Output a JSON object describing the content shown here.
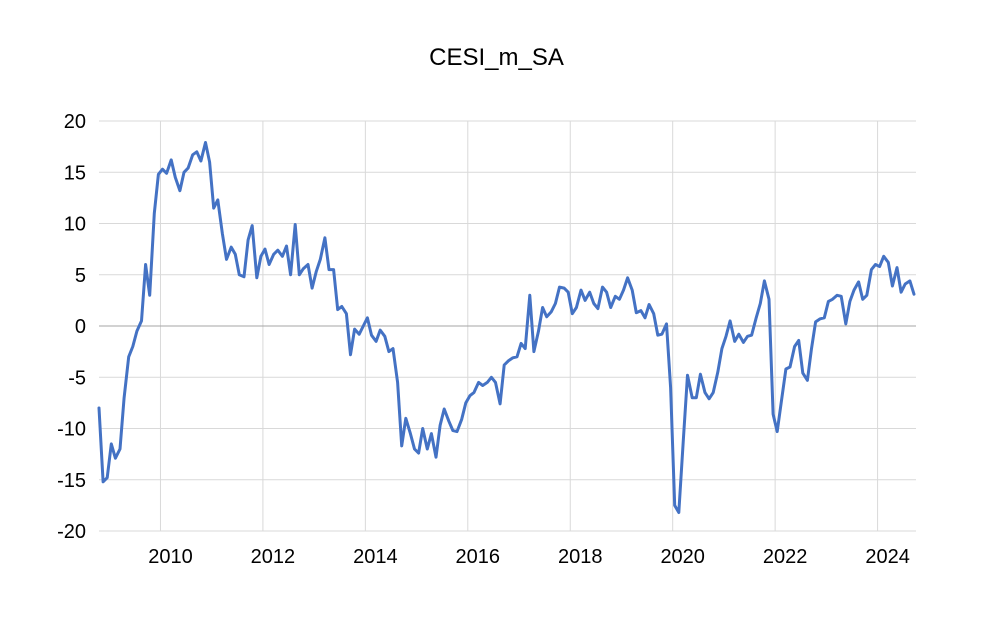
{
  "chart_data": {
    "type": "line",
    "title": "CESI_m_SA",
    "xlabel": "",
    "ylabel": "",
    "ylim": [
      -20,
      20
    ],
    "xlim": [
      2008.8,
      2024.75
    ],
    "yticks": [
      "20",
      "15",
      "10",
      "5",
      "0",
      "-5",
      "-10",
      "-15",
      "-20"
    ],
    "xticks": [
      "2010",
      "2012",
      "2014",
      "2016",
      "2018",
      "2020",
      "2022",
      "2024"
    ],
    "grid": true,
    "legend": "none",
    "colors": {
      "line": "#4472C4",
      "grid": "#D9D9D9",
      "zero_line": "#A6A6A6"
    },
    "series": [
      {
        "x": [
          2008.8,
          2008.88,
          2008.96,
          2009.04,
          2009.12,
          2009.21,
          2009.29,
          2009.38,
          2009.46,
          2009.54,
          2009.63,
          2009.71,
          2009.79,
          2009.88,
          2009.96,
          2010.04,
          2010.12,
          2010.21,
          2010.29,
          2010.38,
          2010.46,
          2010.54,
          2010.63,
          2010.71,
          2010.79,
          2010.88,
          2010.96,
          2011.04,
          2011.12,
          2011.21,
          2011.29,
          2011.38,
          2011.46,
          2011.54,
          2011.63,
          2011.71,
          2011.79,
          2011.88,
          2011.96,
          2012.04,
          2012.12,
          2012.21,
          2012.29,
          2012.38,
          2012.46,
          2012.54,
          2012.63,
          2012.71,
          2012.79,
          2012.88,
          2012.96,
          2013.04,
          2013.12,
          2013.21,
          2013.29,
          2013.38,
          2013.46,
          2013.54,
          2013.63,
          2013.71,
          2013.79,
          2013.88,
          2013.96,
          2014.04,
          2014.12,
          2014.21,
          2014.29,
          2014.38,
          2014.46,
          2014.54,
          2014.63,
          2014.71,
          2014.79,
          2014.88,
          2014.96,
          2015.04,
          2015.12,
          2015.21,
          2015.29,
          2015.38,
          2015.46,
          2015.54,
          2015.63,
          2015.71,
          2015.79,
          2015.88,
          2015.96,
          2016.04,
          2016.12,
          2016.21,
          2016.29,
          2016.38,
          2016.46,
          2016.54,
          2016.63,
          2016.71,
          2016.79,
          2016.88,
          2016.96,
          2017.04,
          2017.12,
          2017.21,
          2017.29,
          2017.38,
          2017.46,
          2017.54,
          2017.63,
          2017.71,
          2017.79,
          2017.88,
          2017.96,
          2018.04,
          2018.12,
          2018.21,
          2018.29,
          2018.38,
          2018.46,
          2018.54,
          2018.63,
          2018.71,
          2018.79,
          2018.88,
          2018.96,
          2019.04,
          2019.12,
          2019.21,
          2019.29,
          2019.38,
          2019.46,
          2019.54,
          2019.63,
          2019.71,
          2019.79,
          2019.88,
          2019.96,
          2020.04,
          2020.12,
          2020.21,
          2020.29,
          2020.38,
          2020.46,
          2020.54,
          2020.63,
          2020.71,
          2020.79,
          2020.88,
          2020.96,
          2021.04,
          2021.12,
          2021.21,
          2021.29,
          2021.38,
          2021.46,
          2021.54,
          2021.63,
          2021.71,
          2021.79,
          2021.88,
          2021.96,
          2022.04,
          2022.12,
          2022.21,
          2022.29,
          2022.38,
          2022.46,
          2022.54,
          2022.63,
          2022.71,
          2022.79,
          2022.88,
          2022.96,
          2023.04,
          2023.12,
          2023.21,
          2023.29,
          2023.38,
          2023.46,
          2023.54,
          2023.63,
          2023.71,
          2023.79,
          2023.88,
          2023.96,
          2024.04,
          2024.12,
          2024.21,
          2024.29,
          2024.38,
          2024.46,
          2024.54,
          2024.63,
          2024.71
        ],
        "values": [
          -8.0,
          -15.2,
          -14.8,
          -11.5,
          -12.9,
          -12.0,
          -7.0,
          -3.0,
          -2.0,
          -0.5,
          0.5,
          6.0,
          3.0,
          11.0,
          14.8,
          15.3,
          14.9,
          16.2,
          14.5,
          13.2,
          15.0,
          15.4,
          16.7,
          17.0,
          16.1,
          17.9,
          16.0,
          11.5,
          12.3,
          9.0,
          6.5,
          7.7,
          7.0,
          5.0,
          4.8,
          8.4,
          9.8,
          4.7,
          6.8,
          7.5,
          6.0,
          7.0,
          7.4,
          6.8,
          7.8,
          5.0,
          9.9,
          5.0,
          5.6,
          6.0,
          3.7,
          5.3,
          6.5,
          8.6,
          5.5,
          5.5,
          1.6,
          1.9,
          1.2,
          -2.8,
          -0.3,
          -0.8,
          0.0,
          0.8,
          -0.9,
          -1.5,
          -0.4,
          -1.0,
          -2.5,
          -2.2,
          -5.5,
          -11.7,
          -9.0,
          -10.5,
          -12.0,
          -12.4,
          -10.0,
          -12.0,
          -10.5,
          -12.8,
          -9.7,
          -8.1,
          -9.3,
          -10.2,
          -10.3,
          -9.1,
          -7.5,
          -6.8,
          -6.5,
          -5.5,
          -5.8,
          -5.5,
          -5.0,
          -5.5,
          -7.6,
          -3.8,
          -3.4,
          -3.1,
          -3.0,
          -1.7,
          -2.2,
          3.0,
          -2.5,
          -0.5,
          1.8,
          0.9,
          1.4,
          2.2,
          3.8,
          3.7,
          3.3,
          1.2,
          1.8,
          3.5,
          2.5,
          3.3,
          2.2,
          1.7,
          3.8,
          3.3,
          1.8,
          2.9,
          2.6,
          3.5,
          4.7,
          3.5,
          1.3,
          1.5,
          0.8,
          2.1,
          1.2,
          -0.9,
          -0.8,
          0.2,
          -6.0,
          -17.5,
          -18.2,
          -11.0,
          -4.8,
          -7.0,
          -7.0,
          -4.7,
          -6.5,
          -7.1,
          -6.5,
          -4.5,
          -2.2,
          -1.0,
          0.5,
          -1.5,
          -0.8,
          -1.6,
          -1.0,
          -0.9,
          0.8,
          2.2,
          4.4,
          2.6,
          -8.6,
          -10.3,
          -7.4,
          -4.2,
          -4.0,
          -2.0,
          -1.4,
          -4.6,
          -5.3,
          -2.2,
          0.4,
          0.7,
          0.8,
          2.4,
          2.6,
          3.0,
          2.9,
          0.2,
          2.4,
          3.5,
          4.3,
          2.6,
          3.0,
          5.5,
          6.0,
          5.8,
          6.8,
          6.2,
          3.9,
          5.7,
          3.3,
          4.1,
          4.4,
          3.1
        ]
      }
    ]
  }
}
